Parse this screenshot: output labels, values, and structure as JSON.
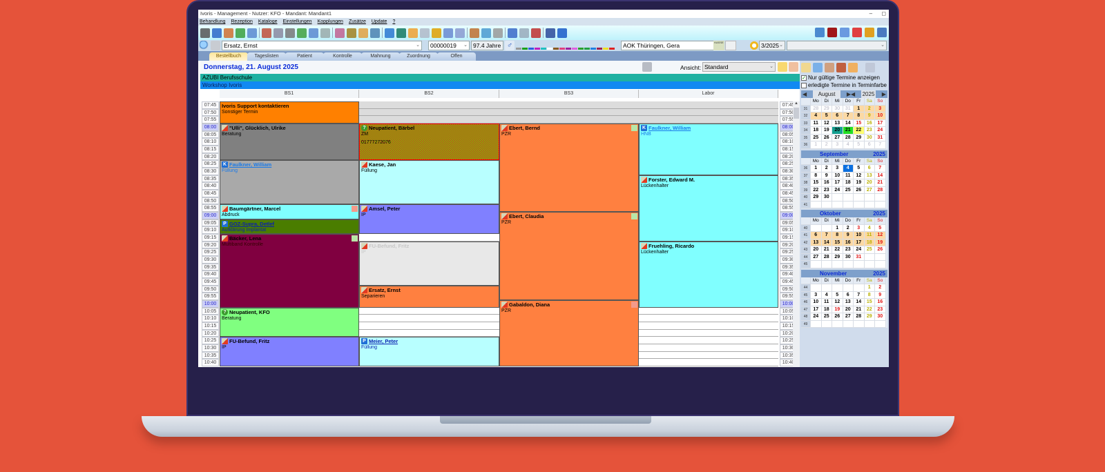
{
  "window": {
    "title": "Ivoris - Management - Nutzer: KFO - Mandant: Mandant1",
    "controls": [
      "–",
      "◻"
    ]
  },
  "menu": [
    "Behandlung",
    "Rezeption",
    "Kataloge",
    "Einstellungen",
    "Kopplungen",
    "Zusätze",
    "Update",
    "?"
  ],
  "toolbar": {
    "icons": [
      {
        "name": "probe-icon",
        "color": "#555"
      },
      {
        "name": "dental-chair-icon",
        "color": "#2a66c8"
      },
      {
        "name": "form-icon",
        "color": "#d07030"
      },
      {
        "name": "pie-chart-icon",
        "color": "#3aa040"
      },
      {
        "name": "chart-icon",
        "color": "#5a8ad0"
      },
      {
        "name": "sep"
      },
      {
        "name": "xray-icon",
        "color": "#c0503a"
      },
      {
        "name": "list-icon",
        "color": "#8a8aa0"
      },
      {
        "name": "curve-icon",
        "color": "#777"
      },
      {
        "name": "pie-list-icon",
        "color": "#40a040"
      },
      {
        "name": "chart-list-icon",
        "color": "#5a8ad0"
      },
      {
        "name": "document-icon",
        "color": "#9aa"
      },
      {
        "name": "sep"
      },
      {
        "name": "tooth-search-icon",
        "color": "#c06090"
      },
      {
        "name": "bridge-icon",
        "color": "#a08020"
      },
      {
        "name": "tooth-doc-icon",
        "color": "#e0a040"
      },
      {
        "name": "bottle-icon",
        "color": "#4a80b0"
      },
      {
        "name": "sep"
      },
      {
        "name": "card-reader-icon",
        "color": "#2a78d0"
      },
      {
        "name": "person-terminal-icon",
        "color": "#147860"
      },
      {
        "name": "calendar-icon",
        "color": "#f0a030"
      },
      {
        "name": "mail-icon",
        "color": "#b0b8c8"
      },
      {
        "name": "euro-icon",
        "color": "#e0a000"
      },
      {
        "name": "book-icon",
        "color": "#6a8ad0"
      },
      {
        "name": "pages-icon",
        "color": "#8a9ad0"
      },
      {
        "name": "sep"
      },
      {
        "name": "person-icon",
        "color": "#c07030"
      },
      {
        "name": "network-icon",
        "color": "#4a9ad0"
      },
      {
        "name": "printer-icon",
        "color": "#999"
      },
      {
        "name": "sep"
      },
      {
        "name": "word-icon",
        "color": "#3a6ac8"
      },
      {
        "name": "card-icon",
        "color": "#9ab"
      },
      {
        "name": "pen-icon",
        "color": "#c03030"
      },
      {
        "name": "sep"
      },
      {
        "name": "save-icon",
        "color": "#2a4a9a"
      },
      {
        "name": "help-icon",
        "color": "#1a5ac8"
      }
    ],
    "right_icons": [
      {
        "name": "ta-icon",
        "color": "#4a8ad0"
      },
      {
        "name": "signature-icon",
        "color": "#a01818"
      },
      {
        "name": "s-icon",
        "color": "#6a9ae0"
      },
      {
        "name": "lifebuoy-icon",
        "color": "#e04040"
      },
      {
        "name": "key-icon",
        "color": "#e0a020"
      },
      {
        "name": "grid-icon",
        "color": "#4a7ac0"
      }
    ]
  },
  "patient_bar": {
    "patient_name": "Ersatz, Ernst",
    "patient_number": "00000019",
    "age": "97.4 Jahre",
    "insurance": "AOK Thüringen, Gera",
    "kasse_label": "KASSE",
    "quarter": "3/2025",
    "color_tags": [
      "#999",
      "#1aa01a",
      "#2a60e0",
      "#c020c0",
      "#20c0c0",
      "#ffffff",
      "#8a5a20",
      "#e04080",
      "#a020a0",
      "#e060e0",
      "#2aa02a",
      "#20a040",
      "#2080e0",
      "#a02050",
      "#f0e020",
      "#e02020"
    ]
  },
  "tabs": [
    {
      "label": "Bestellbuch",
      "active": true
    },
    {
      "label": "Tageslisten"
    },
    {
      "label": "Patient"
    },
    {
      "label": "Kontrolle"
    },
    {
      "label": "Mahnung"
    },
    {
      "label": "Zuordnung"
    },
    {
      "label": "Offen"
    }
  ],
  "schedule": {
    "date": "Donnerstag, 21. August 2025",
    "view_label": "Ansicht:",
    "view_value": "Standard",
    "banners": [
      "AZUBI Berufsschule",
      "Workshop Ivoris"
    ],
    "columns": [
      "BS1",
      "BS2",
      "BS3",
      "Labor"
    ],
    "times": [
      "07:45",
      "07:50",
      "07:55",
      "08:00",
      "08:05",
      "08:10",
      "08:15",
      "08:20",
      "08:25",
      "08:30",
      "08:35",
      "08:40",
      "08:45",
      "08:50",
      "08:55",
      "09:00",
      "09:05",
      "09:10",
      "09:15",
      "09:20",
      "09:25",
      "09:30",
      "09:35",
      "09:40",
      "09:45",
      "09:50",
      "09:55",
      "10:00",
      "10:05",
      "10:10",
      "10:15",
      "10:20",
      "10:25",
      "10:30",
      "10:35",
      "10:40"
    ],
    "blocked_until": "08:00",
    "appointments": [
      [
        {
          "start": "07:45",
          "end": "08:00",
          "name": "Ivoris Support kontaktieren",
          "note": "Sonstiger Termin",
          "color": "#ff8000",
          "icon": ""
        },
        {
          "start": "08:00",
          "end": "08:25",
          "name": "\"Ulli\", Glücklich, Ulrike",
          "note": "Beratung",
          "color": "#808080",
          "icon": "patient"
        },
        {
          "start": "08:25",
          "end": "08:55",
          "name": "Faulkner, William",
          "note": "Füllung",
          "color": "#a9a9a9",
          "icon": "k",
          "link": true,
          "textColor": "#1a7ae8"
        },
        {
          "start": "08:55",
          "end": "09:05",
          "name": "Baumgärtner, Marcel",
          "note": "Abdruck",
          "color": "#80ffff",
          "icon": "patient",
          "flag": "red"
        },
        {
          "start": "09:05",
          "end": "09:15",
          "name": "GOZ-Supra, Detlef",
          "note": "Aufklärung Implantat",
          "color": "#4a7d00",
          "icon": "p",
          "link": true,
          "textColor": "#0a20b0"
        },
        {
          "start": "09:15",
          "end": "10:05",
          "name": "Bäcker, Lena",
          "note": "Multiband Kontrolle",
          "color": "#800040",
          "icon": "patient",
          "flag": "green"
        },
        {
          "start": "10:05",
          "end": "10:25",
          "name": "Neupatient, KFO",
          "note": "Beratung",
          "color": "#80ff80",
          "icon": "question"
        },
        {
          "start": "10:25",
          "end": "10:45",
          "name": "FU-Befund, Fritz",
          "note": "IP",
          "color": "#8080ff",
          "icon": "patient"
        }
      ],
      [
        {
          "start": "08:00",
          "end": "08:25",
          "name": "Neupatient, Bärbel",
          "note": "ZM",
          "extra": "01777272076",
          "color": "#8ccc10",
          "icon": "question",
          "pattern": true
        },
        {
          "start": "08:25",
          "end": "08:55",
          "name": "Kaese, Jan",
          "note": "Füllung",
          "color": "#b8ffff",
          "icon": "patient"
        },
        {
          "start": "08:55",
          "end": "09:15",
          "name": "Amsel, Peter",
          "note": "IP",
          "color": "#8080ff",
          "icon": "patient"
        },
        {
          "start": "09:20",
          "end": "09:50",
          "name": "FU-Befund, Fritz",
          "note": "IP",
          "color": "#e8e8e8",
          "icon": "patient",
          "faded": true
        },
        {
          "start": "09:50",
          "end": "10:05",
          "name": "Ersatz, Ernst",
          "note": "Separieren",
          "color": "#ff8040",
          "icon": "patient"
        },
        {
          "start": "10:25",
          "end": "10:45",
          "name": "Meier, Peter",
          "note": "Füllung",
          "color": "#b8ffff",
          "icon": "p",
          "link": true,
          "textColor": "#0a20b0"
        }
      ],
      [
        {
          "start": "08:00",
          "end": "09:00",
          "name": "Ebert, Bernd",
          "note": "PZR",
          "color": "#ff8040",
          "icon": "patient",
          "flag": "green"
        },
        {
          "start": "09:00",
          "end": "10:00",
          "name": "Ebert, Claudia",
          "note": "PZR",
          "color": "#ff8040",
          "icon": "patient",
          "flag": "green"
        },
        {
          "start": "10:00",
          "end": "10:45",
          "name": "Gabaldon, Diana",
          "note": "PZR",
          "color": "#ff8040",
          "icon": "patient",
          "flag": "red"
        }
      ],
      [
        {
          "start": "08:00",
          "end": "08:35",
          "name": "Faulkner, William",
          "note": "HNB",
          "color": "#80ffff",
          "icon": "k",
          "link": true,
          "textColor": "#1a7ae8"
        },
        {
          "start": "08:35",
          "end": "09:20",
          "name": "Forster, Edward M.",
          "note": "Lückenhalter",
          "color": "#80ffff",
          "icon": "patient"
        },
        {
          "start": "09:20",
          "end": "10:05",
          "name": "Fruehling, Ricardo",
          "note": "Lückenhalter",
          "color": "#80ffff",
          "icon": "patient"
        }
      ]
    ]
  },
  "sidebar": {
    "icons": [
      "clock-pin-icon",
      "search-icon",
      "calendar-12-icon",
      "user-check-icon",
      "user-search-icon",
      "pins-icon"
    ],
    "options": [
      {
        "label": "Nur gültige Termine anzeigen",
        "checked": true
      },
      {
        "label": "erledigte Termine in Terminfarbe",
        "checked": false
      }
    ],
    "weekdays": [
      "Mo",
      "Di",
      "Mi",
      "Do",
      "Fr",
      "Sa",
      "So"
    ],
    "months": [
      {
        "name": "August",
        "year": "2025",
        "selector": true,
        "weeks": [
          {
            "kw": "31",
            "days": [
              "28",
              "29",
              "30",
              "31",
              "1",
              "2",
              "3"
            ]
          },
          {
            "kw": "32",
            "days": [
              "4",
              "5",
              "6",
              "7",
              "8",
              "9",
              "10"
            ]
          },
          {
            "kw": "33",
            "days": [
              "11",
              "12",
              "13",
              "14",
              "15",
              "16",
              "17"
            ]
          },
          {
            "kw": "34",
            "days": [
              "18",
              "19",
              "20",
              "21",
              "22",
              "23",
              "24"
            ]
          },
          {
            "kw": "35",
            "days": [
              "25",
              "26",
              "27",
              "28",
              "29",
              "30",
              "31"
            ]
          },
          {
            "kw": "36",
            "days": [
              "1",
              "2",
              "3",
              "4",
              "5",
              "6",
              "7"
            ]
          }
        ],
        "muted_first": 4,
        "muted_last": 7,
        "red": [
          "15"
        ],
        "vacation": [
          "1",
          "2",
          "3",
          "4",
          "5",
          "6",
          "7",
          "8",
          "9",
          "10"
        ],
        "teal": "20",
        "today": "21",
        "yellow": "22"
      },
      {
        "name": "September",
        "year": "2025",
        "weeks": [
          {
            "kw": "36",
            "days": [
              "1",
              "2",
              "3",
              "4",
              "5",
              "6",
              "7"
            ]
          },
          {
            "kw": "37",
            "days": [
              "8",
              "9",
              "10",
              "11",
              "12",
              "13",
              "14"
            ]
          },
          {
            "kw": "38",
            "days": [
              "15",
              "16",
              "17",
              "18",
              "19",
              "20",
              "21"
            ]
          },
          {
            "kw": "39",
            "days": [
              "22",
              "23",
              "24",
              "25",
              "26",
              "27",
              "28"
            ]
          },
          {
            "kw": "40",
            "days": [
              "29",
              "30",
              "",
              "",
              "",
              "",
              ""
            ]
          },
          {
            "kw": "41",
            "days": [
              "",
              "",
              "",
              "",
              "",
              "",
              ""
            ]
          }
        ],
        "red": [
          "20"
        ],
        "selected": "4"
      },
      {
        "name": "Oktober",
        "year": "2025",
        "weeks": [
          {
            "kw": "40",
            "days": [
              "",
              "",
              "1",
              "2",
              "3",
              "4",
              "5"
            ]
          },
          {
            "kw": "41",
            "days": [
              "6",
              "7",
              "8",
              "9",
              "10",
              "11",
              "12"
            ]
          },
          {
            "kw": "42",
            "days": [
              "13",
              "14",
              "15",
              "16",
              "17",
              "18",
              "19"
            ]
          },
          {
            "kw": "43",
            "days": [
              "20",
              "21",
              "22",
              "23",
              "24",
              "25",
              "26"
            ]
          },
          {
            "kw": "44",
            "days": [
              "27",
              "28",
              "29",
              "30",
              "31",
              "",
              ""
            ]
          },
          {
            "kw": "45",
            "days": [
              "",
              "",
              "",
              "",
              "",
              "",
              ""
            ]
          }
        ],
        "red": [
          "3",
          "31"
        ],
        "vacation": [
          "6",
          "7",
          "8",
          "9",
          "10",
          "11",
          "12",
          "13",
          "14",
          "15",
          "16",
          "17",
          "18",
          "19"
        ]
      },
      {
        "name": "November",
        "year": "2025",
        "weeks": [
          {
            "kw": "44",
            "days": [
              "",
              "",
              "",
              "",
              "",
              "1",
              "2"
            ]
          },
          {
            "kw": "45",
            "days": [
              "3",
              "4",
              "5",
              "6",
              "7",
              "8",
              "9"
            ]
          },
          {
            "kw": "46",
            "days": [
              "10",
              "11",
              "12",
              "13",
              "14",
              "15",
              "16"
            ]
          },
          {
            "kw": "47",
            "days": [
              "17",
              "18",
              "19",
              "20",
              "21",
              "22",
              "23"
            ]
          },
          {
            "kw": "48",
            "days": [
              "24",
              "25",
              "26",
              "27",
              "28",
              "29",
              "30"
            ]
          },
          {
            "kw": "49",
            "days": [
              "",
              "",
              "",
              "",
              "",
              "",
              ""
            ]
          }
        ],
        "red": [
          "19"
        ]
      }
    ]
  }
}
